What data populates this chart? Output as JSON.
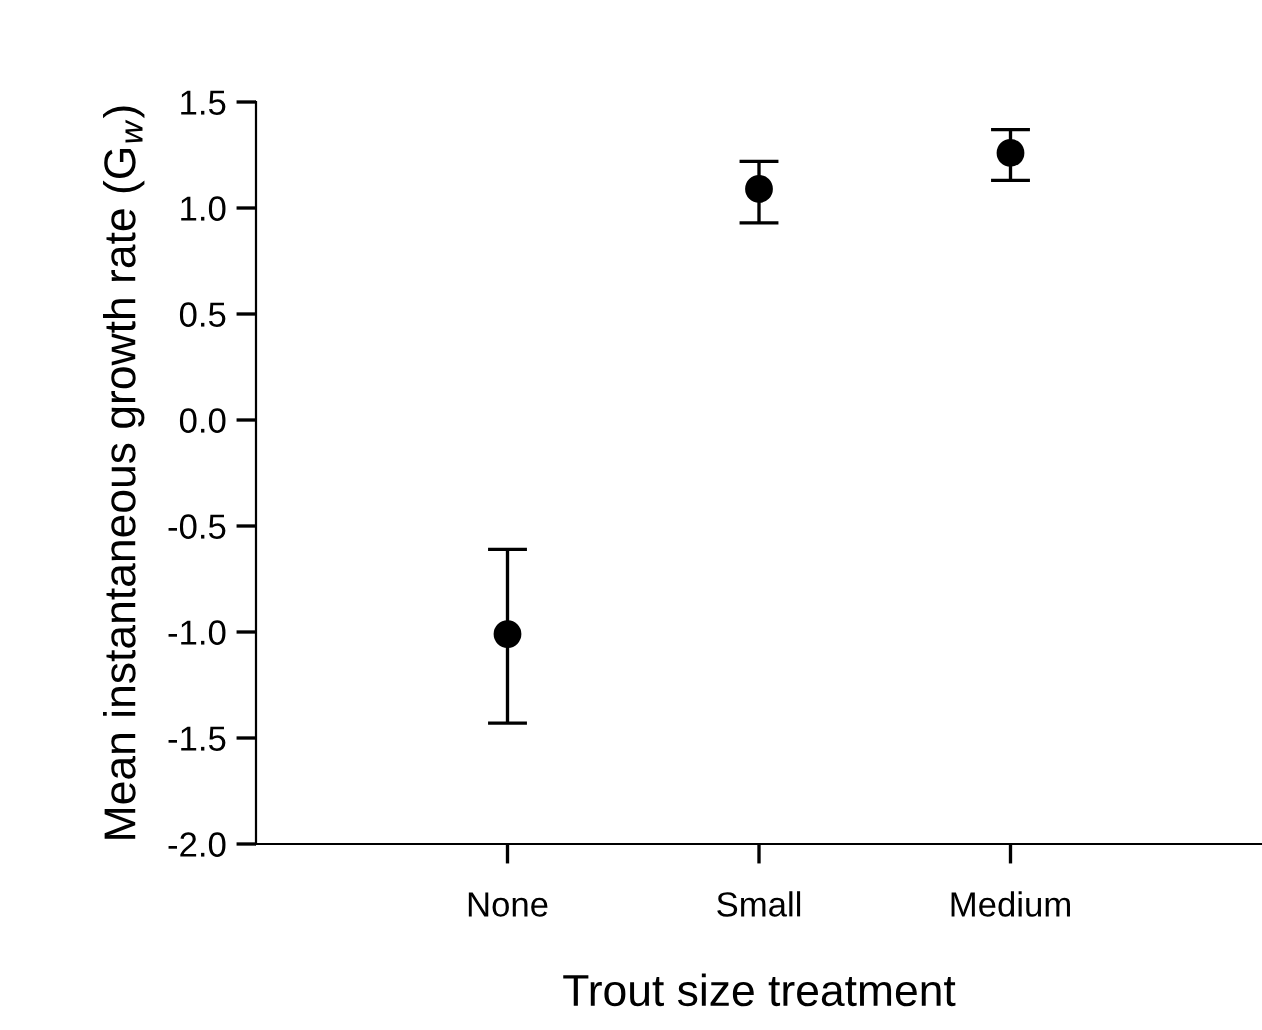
{
  "chart_data": {
    "type": "scatter",
    "xlabel": "Trout size treatment",
    "ylabel": "Mean instantaneous growth rate (G$_{w}$)",
    "categories": [
      "None",
      "Small",
      "Medium"
    ],
    "values": [
      -1.01,
      1.09,
      1.26
    ],
    "errors": [
      [
        -1.43,
        -0.61
      ],
      [
        0.93,
        1.22
      ],
      [
        1.13,
        1.37
      ]
    ],
    "color": "#000000",
    "marker": "circle",
    "ylim": [
      -2.0,
      1.5
    ],
    "yticks": [
      {
        "value": -2.0,
        "label": "-2.0"
      },
      {
        "value": -1.5,
        "label": "-1.5"
      },
      {
        "value": -1.0,
        "label": "-1.0"
      },
      {
        "value": -0.5,
        "label": "-0.5"
      },
      {
        "value": 0.0,
        "label": "0.0"
      },
      {
        "value": 0.5,
        "label": "0.5"
      },
      {
        "value": 1.0,
        "label": "1.0"
      },
      {
        "value": 1.5,
        "label": "1.5"
      }
    ],
    "grid": false,
    "legend": false
  }
}
